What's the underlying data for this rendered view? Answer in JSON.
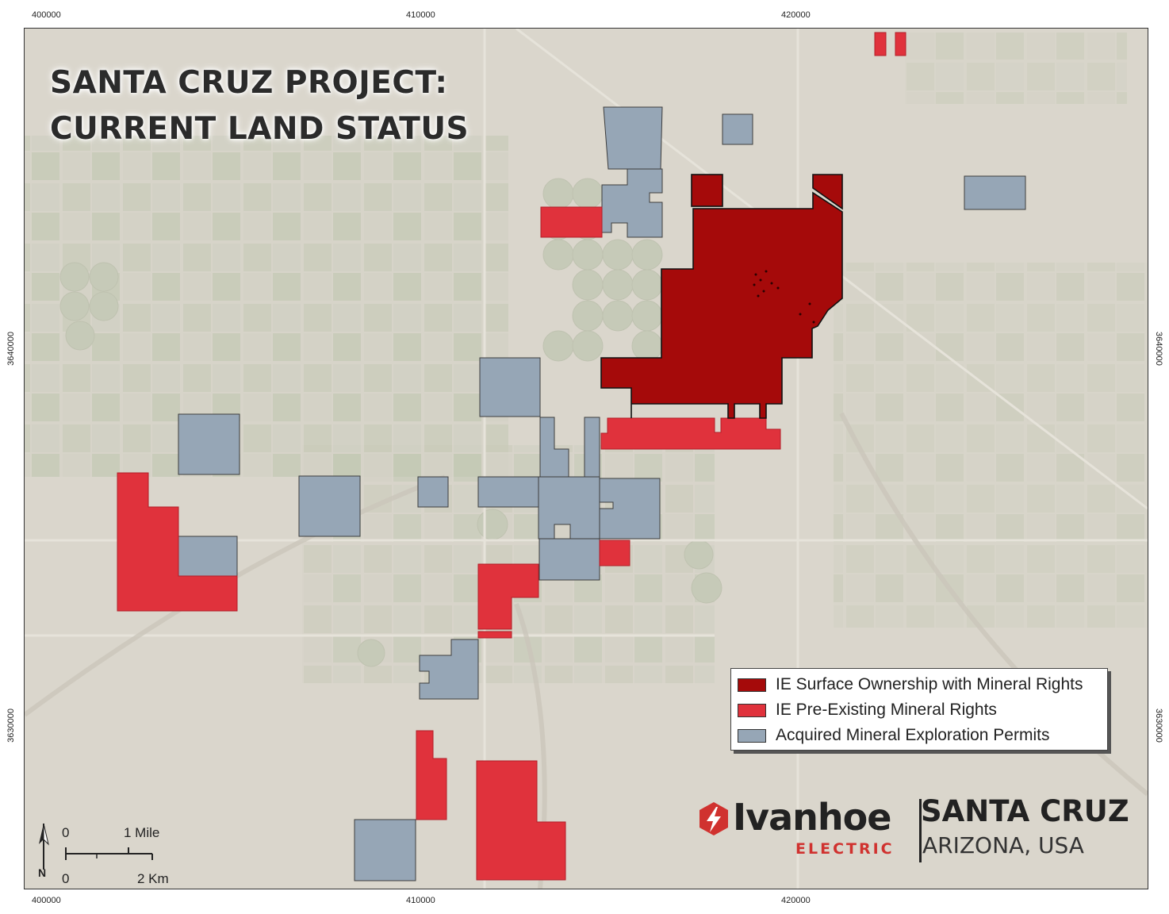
{
  "map": {
    "title_line1": "SANTA CRUZ PROJECT:",
    "title_line2": "CURRENT LAND STATUS",
    "grid_labels": {
      "top": [
        "400000",
        "410000",
        "420000"
      ],
      "bottom": [
        "400000",
        "410000",
        "420000"
      ],
      "left": [
        "3640000",
        "3630000"
      ],
      "right": [
        "3640000",
        "3630000"
      ]
    }
  },
  "legend": {
    "items": [
      {
        "label": "IE Surface Ownership with Mineral Rights",
        "color": "#a50a0a"
      },
      {
        "label": "IE Pre-Existing Mineral Rights",
        "color": "#e0323c"
      },
      {
        "label": "Acquired Mineral Exploration Permits",
        "color": "#96a6b6"
      }
    ]
  },
  "scale_bar": {
    "mile_zero": "0",
    "mile_label": "1 Mile",
    "km_zero": "0",
    "km_label": "2 Km",
    "north_label": "N"
  },
  "branding": {
    "company_name": "Ivanhoe",
    "company_sub": "ELECTRIC",
    "project_name": "SANTA CRUZ",
    "project_location": "ARIZONA, USA",
    "brand_red": "#d0322f"
  },
  "colors": {
    "surface_ownership": "#a50a0a",
    "pre_existing_rights": "#e0323c",
    "exploration_permits": "#96a6b6",
    "map_background": "#d9d5cc"
  }
}
